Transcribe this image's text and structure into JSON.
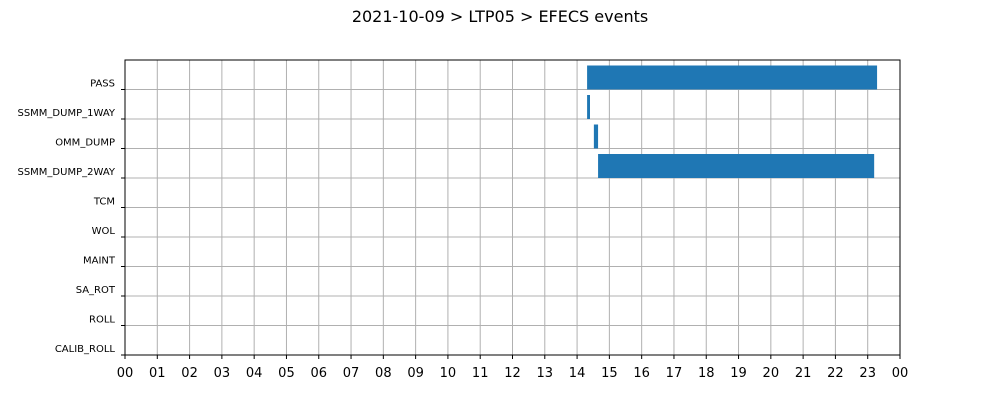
{
  "chart_data": {
    "type": "gantt",
    "title": "2021-10-09 > LTP05 > EFECS events",
    "categories": [
      "PASS",
      "SSMM_DUMP_1WAY",
      "OMM_DUMP",
      "SSMM_DUMP_2WAY",
      "TCM",
      "WOL",
      "MAINT",
      "SA_ROT",
      "ROLL",
      "CALIB_ROLL"
    ],
    "starts": [
      14.31,
      14.31,
      14.52,
      14.65,
      null,
      null,
      null,
      null,
      null,
      null
    ],
    "ends": [
      23.29,
      14.4,
      14.65,
      23.2,
      null,
      null,
      null,
      null,
      null,
      null
    ],
    "color": "#1f77b4",
    "xlim": [
      0,
      24
    ],
    "xticks": [
      {
        "value": 0,
        "label": "00"
      },
      {
        "value": 1,
        "label": "01"
      },
      {
        "value": 2,
        "label": "02"
      },
      {
        "value": 3,
        "label": "03"
      },
      {
        "value": 4,
        "label": "04"
      },
      {
        "value": 5,
        "label": "05"
      },
      {
        "value": 6,
        "label": "06"
      },
      {
        "value": 7,
        "label": "07"
      },
      {
        "value": 8,
        "label": "08"
      },
      {
        "value": 9,
        "label": "09"
      },
      {
        "value": 10,
        "label": "10"
      },
      {
        "value": 11,
        "label": "11"
      },
      {
        "value": 12,
        "label": "12"
      },
      {
        "value": 13,
        "label": "13"
      },
      {
        "value": 14,
        "label": "14"
      },
      {
        "value": 15,
        "label": "15"
      },
      {
        "value": 16,
        "label": "16"
      },
      {
        "value": 17,
        "label": "17"
      },
      {
        "value": 18,
        "label": "18"
      },
      {
        "value": 19,
        "label": "19"
      },
      {
        "value": 20,
        "label": "20"
      },
      {
        "value": 21,
        "label": "21"
      },
      {
        "value": 22,
        "label": "22"
      },
      {
        "value": 23,
        "label": "23"
      },
      {
        "value": 24,
        "label": "00"
      }
    ],
    "grid": true
  }
}
